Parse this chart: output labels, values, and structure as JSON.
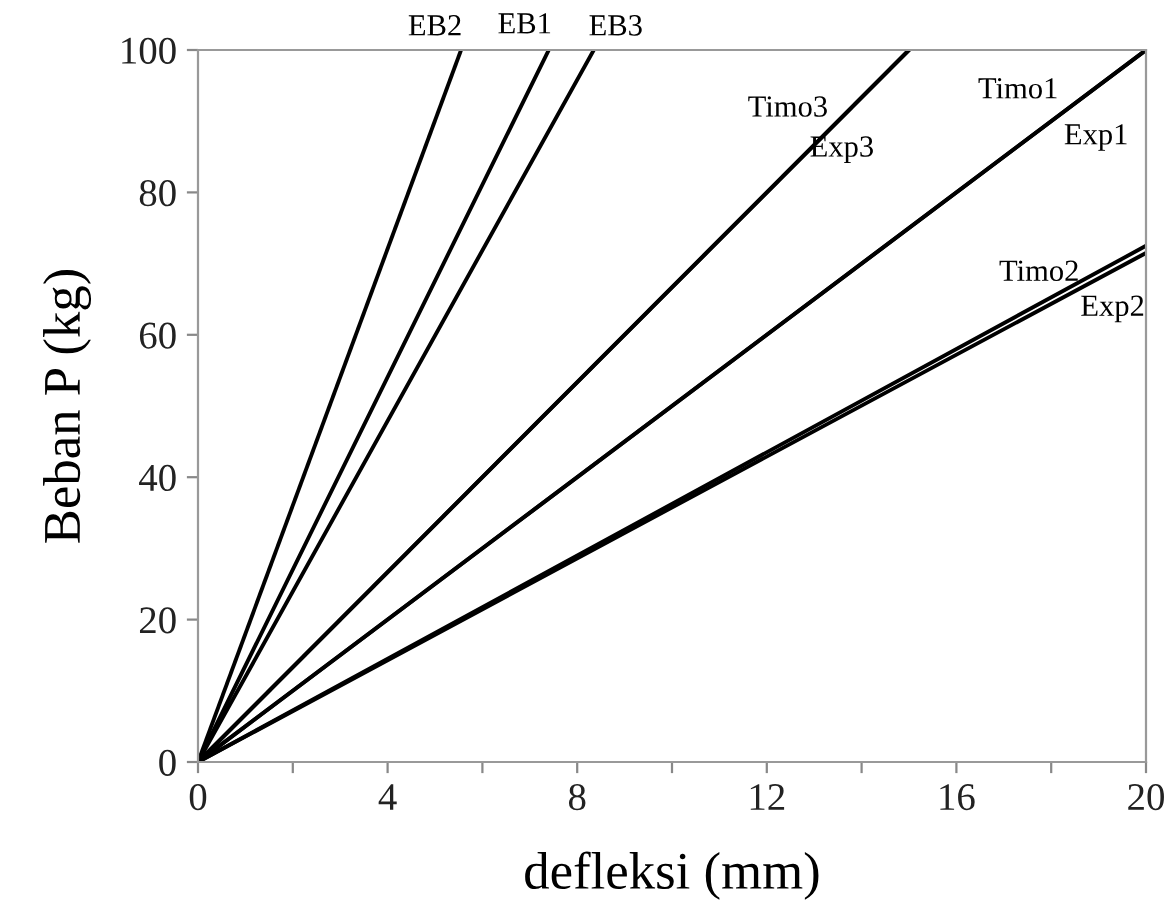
{
  "chart_data": {
    "type": "line",
    "xlabel": "defleksi (mm)",
    "ylabel": "Beban P (kg)",
    "xlim": [
      0,
      20
    ],
    "ylim": [
      0,
      100
    ],
    "xticks": [
      0,
      {
        "value": 2,
        "label": null
      },
      4,
      {
        "value": 6,
        "label": null
      },
      8,
      {
        "value": 10,
        "label": null
      },
      12,
      {
        "value": 14,
        "label": null
      },
      16,
      {
        "value": 18,
        "label": null
      },
      20
    ],
    "yticks": [
      0,
      20,
      40,
      60,
      80,
      100
    ],
    "grid": false,
    "marker": "none",
    "line_style": "solid",
    "series": [
      {
        "name": "EB2",
        "color": "#000000",
        "x": [
          0,
          5.55
        ],
        "values": [
          0,
          100
        ]
      },
      {
        "name": "EB1",
        "color": "#000000",
        "x": [
          0,
          7.4
        ],
        "values": [
          0,
          100
        ]
      },
      {
        "name": "EB3",
        "color": "#000000",
        "x": [
          0,
          8.35
        ],
        "values": [
          0,
          100
        ]
      },
      {
        "name": "Timo3",
        "color": "#000000",
        "x": [
          0,
          15.0
        ],
        "values": [
          0,
          100
        ]
      },
      {
        "name": "Exp3",
        "color": "#000000",
        "x": [
          0,
          15.0
        ],
        "values": [
          0,
          100
        ]
      },
      {
        "name": "Timo1",
        "color": "#000000",
        "x": [
          0,
          20
        ],
        "values": [
          0,
          100
        ]
      },
      {
        "name": "Exp1",
        "color": "#000000",
        "x": [
          0,
          20
        ],
        "values": [
          0,
          100
        ]
      },
      {
        "name": "Timo2",
        "color": "#000000",
        "x": [
          0,
          20
        ],
        "values": [
          0,
          72.5
        ]
      },
      {
        "name": "Exp2",
        "color": "#000000",
        "x": [
          0,
          20
        ],
        "values": [
          0,
          71.5
        ]
      }
    ]
  }
}
